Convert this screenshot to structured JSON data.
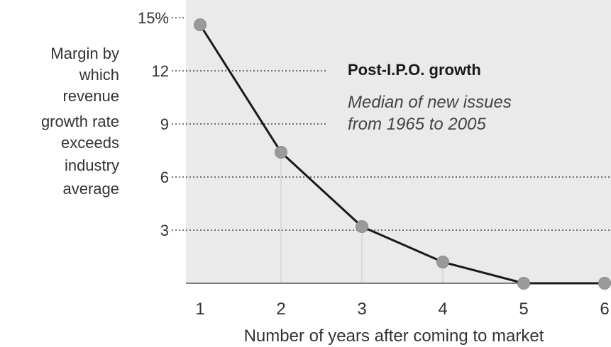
{
  "chart_data": {
    "type": "line",
    "title": "Post-I.P.O. growth",
    "subtitle": [
      "Median of new issues",
      "from 1965 to 2005"
    ],
    "ylabel": [
      "Margin by",
      "which",
      "revenue",
      "growth rate",
      "exceeds",
      "industry",
      "average"
    ],
    "xlabel": "Number of years after coming to market",
    "x": [
      1,
      2,
      3,
      4,
      5,
      6
    ],
    "values": [
      14.6,
      7.4,
      3.2,
      1.2,
      0,
      0
    ],
    "xlim": [
      1,
      6
    ],
    "ylim": [
      0,
      15
    ],
    "yticks": [
      3,
      6,
      9,
      12,
      15
    ],
    "ytick_labels": [
      "3",
      "6",
      "9",
      "12",
      "15%"
    ],
    "xtick_labels": [
      "1",
      "2",
      "3",
      "4",
      "5",
      "6"
    ],
    "grid": "dotted horizontal",
    "colors": {
      "plot_bg": "#eaeaea",
      "line": "#1a1a1a",
      "marker": "#9a9a9a",
      "grid": "#444444",
      "text": "#333333"
    }
  }
}
